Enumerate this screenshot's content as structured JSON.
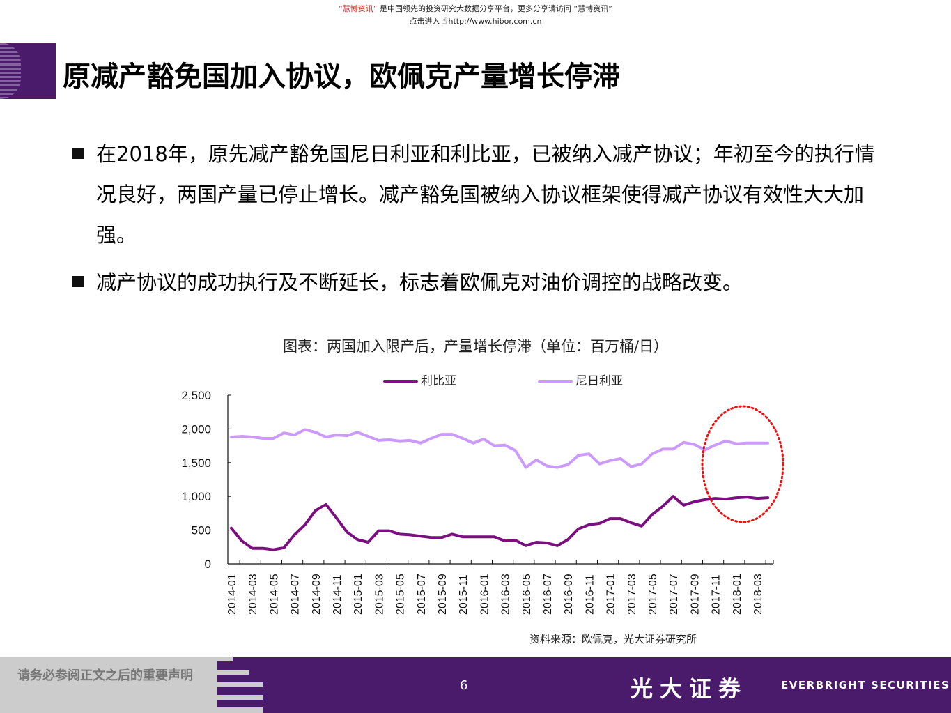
{
  "banner": {
    "brand": "“慧博资讯”",
    "text": " 是中国领先的投资研究大数据分享平台，更多分享请访问 “慧博资讯”",
    "enter": "点击进入",
    "hand_icon": "☝",
    "url": "http://www.hibor.com.cn"
  },
  "header": {
    "title": "原减产豁免国加入协议，欧佩克产量增长停滞"
  },
  "bullets": [
    "在2018年，原先减产豁免国尼日利亚和利比亚，已被纳入减产协议；年初至今的执行情况良好，两国产量已停止增长。减产豁免国被纳入协议框架使得减产协议有效性大大加强。",
    "减产协议的成功执行及不断延长，标志着欧佩克对油价调控的战略改变。"
  ],
  "colors": {
    "brand_purple": "#4a1a6b",
    "libya": "#7b0f7f",
    "nigeria": "#cc99ff",
    "highlight": "#ee1111"
  },
  "chart_data": {
    "type": "line",
    "title": "图表：两国加入限产后，产量增长停滞（单位：百万桶/日）",
    "xlabel": "",
    "ylabel": "",
    "ylim": [
      0,
      2500
    ],
    "yticks": [
      "0",
      "500",
      "1,000",
      "1,500",
      "2,000",
      "2,500"
    ],
    "ytick_values": [
      0,
      500,
      1000,
      1500,
      2000,
      2500
    ],
    "grid": false,
    "legend_position": "top",
    "x_tick_labels": [
      "2014-01",
      "2014-03",
      "2014-05",
      "2014-07",
      "2014-09",
      "2014-11",
      "2015-01",
      "2015-03",
      "2015-05",
      "2015-07",
      "2015-09",
      "2015-11",
      "2016-01",
      "2016-03",
      "2016-05",
      "2016-07",
      "2016-09",
      "2016-11",
      "2017-01",
      "2017-03",
      "2017-05",
      "2017-07",
      "2017-09",
      "2017-11",
      "2018-01",
      "2018-03"
    ],
    "x": [
      "2014-01",
      "2014-02",
      "2014-03",
      "2014-04",
      "2014-05",
      "2014-06",
      "2014-07",
      "2014-08",
      "2014-09",
      "2014-10",
      "2014-11",
      "2014-12",
      "2015-01",
      "2015-02",
      "2015-03",
      "2015-04",
      "2015-05",
      "2015-06",
      "2015-07",
      "2015-08",
      "2015-09",
      "2015-10",
      "2015-11",
      "2015-12",
      "2016-01",
      "2016-02",
      "2016-03",
      "2016-04",
      "2016-05",
      "2016-06",
      "2016-07",
      "2016-08",
      "2016-09",
      "2016-10",
      "2016-11",
      "2016-12",
      "2017-01",
      "2017-02",
      "2017-03",
      "2017-04",
      "2017-05",
      "2017-06",
      "2017-07",
      "2017-08",
      "2017-09",
      "2017-10",
      "2017-11",
      "2017-12",
      "2018-01",
      "2018-02",
      "2018-03",
      "2018-04"
    ],
    "series": [
      {
        "name": "利比亚",
        "color": "#7b0f7f",
        "values": [
          530,
          340,
          230,
          230,
          210,
          240,
          430,
          580,
          790,
          880,
          680,
          470,
          360,
          320,
          490,
          490,
          440,
          430,
          410,
          390,
          390,
          440,
          400,
          400,
          400,
          400,
          340,
          350,
          270,
          320,
          310,
          270,
          360,
          520,
          580,
          600,
          670,
          670,
          610,
          560,
          730,
          850,
          1000,
          870,
          920,
          950,
          970,
          960,
          980,
          990,
          970,
          980
        ]
      },
      {
        "name": "尼日利亚",
        "color": "#cc99ff",
        "values": [
          1880,
          1890,
          1880,
          1860,
          1860,
          1940,
          1910,
          1990,
          1950,
          1880,
          1910,
          1900,
          1950,
          1890,
          1830,
          1840,
          1820,
          1830,
          1790,
          1860,
          1920,
          1920,
          1860,
          1790,
          1850,
          1750,
          1760,
          1680,
          1430,
          1540,
          1450,
          1430,
          1470,
          1610,
          1630,
          1480,
          1530,
          1560,
          1440,
          1480,
          1630,
          1700,
          1700,
          1800,
          1770,
          1690,
          1760,
          1820,
          1780,
          1790,
          1790,
          1790
        ]
      }
    ],
    "annotations": [
      {
        "type": "dotted-ellipse",
        "color": "#ee1111",
        "covers": [
          "2017-10",
          "2018-04"
        ]
      }
    ],
    "source": "资料来源：欧佩克，光大证券研究所"
  },
  "footer": {
    "disclaimer": "请务必参阅正文之后的重要声明",
    "page_number": "6",
    "logo_cn": "光大证券",
    "logo_en": "EVERBRIGHT SECURITIES"
  }
}
